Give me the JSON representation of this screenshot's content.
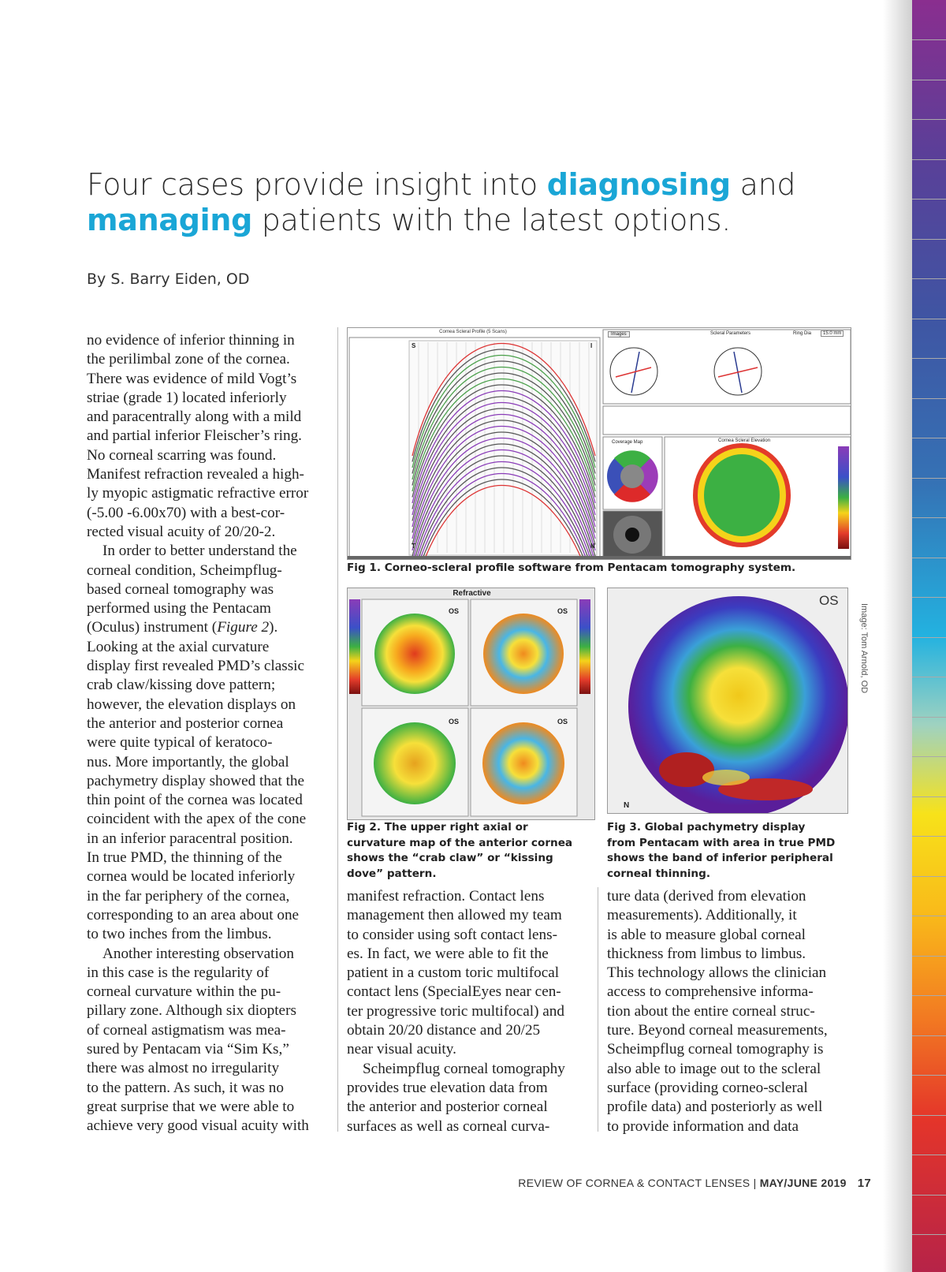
{
  "headline": [
    {
      "text": "Four cases provide insight into ",
      "hl": false
    },
    {
      "text": "diagnosing",
      "hl": true
    },
    {
      "text": " and ",
      "hl": false
    },
    {
      "text": "managing",
      "hl": true
    },
    {
      "text": " patients with the latest options.",
      "hl": false
    }
  ],
  "byline": "By S. Barry Eiden, OD",
  "columns": {
    "left": [
      "no evidence of inferior thinning in",
      "the perilimbal zone of the cornea.",
      "There was evidence of mild Vogt’s",
      "striae (grade 1) located inferiorly",
      "and paracentrally along with a mild",
      "and partial inferior Fleischer’s ring.",
      "No corneal scarring was found.",
      "Manifest refraction revealed a high-",
      "ly myopic astigmatic refractive error",
      "(-5.00 -6.00x70) with a best-cor-",
      "rected visual acuity of 20/20-2.",
      "~In order to better understand the",
      "corneal condition, Scheimpflug-",
      "based corneal tomography was",
      "performed using the Pentacam",
      "(Oculus) instrument (Figure 2).",
      "Looking at the axial curvature",
      "display first revealed PMD’s classic",
      "crab claw/kissing dove pattern;",
      "however, the elevation displays on",
      "the anterior and posterior cornea",
      "were quite typical of keratoco-",
      "nus. More importantly, the global",
      "pachymetry display showed that the",
      "thin point of the cornea was located",
      "coincident with the apex of the cone",
      "in an inferior paracentral position.",
      "In true PMD, the thinning of the",
      "cornea would be located inferiorly",
      "in the far periphery of the cornea,",
      "corresponding to an area about one",
      "to two inches from the limbus.",
      "~Another interesting observation",
      "in this case is the regularity of",
      "corneal curvature within the pu-",
      "pillary zone. Although six diopters",
      "of corneal astigmatism was mea-",
      "sured by Pentacam via “Sim Ks,”",
      "there was almost no irregularity",
      "to the pattern. As such, it was no",
      "great surprise that we were able to",
      "achieve very good visual acuity with"
    ],
    "middle": [
      "manifest refraction. Contact lens",
      "management then allowed my team",
      "to consider using soft contact lens-",
      "es. In fact, we were able to fit the",
      "patient in a custom toric multifocal",
      "contact lens (SpecialEyes near cen-",
      "ter progressive toric multifocal) and",
      "obtain 20/20 distance and 20/25",
      "near visual acuity.",
      "~Scheimpflug corneal tomography",
      "provides true elevation data from",
      "the anterior and posterior corneal",
      "surfaces as well as corneal curva-"
    ],
    "right": [
      "ture data (derived from elevation",
      "measurements). Additionally, it",
      "is able to measure global corneal",
      "thickness from limbus to limbus.",
      "This technology allows the clinician",
      "access to comprehensive informa-",
      "tion about the entire corneal struc-",
      "ture. Beyond corneal measurements,",
      "Scheimpflug corneal tomography is",
      "also able to image out to the scleral",
      "surface (providing corneo-scleral",
      "profile data) and posteriorly as well",
      "to provide information and data"
    ]
  },
  "figures": {
    "fig1": {
      "caption": "Fig 1. Corneo-scleral profile software from Pentacam tomography system.",
      "panel_title": "Cornea Scleral Profile (5 Scans)",
      "images_button": "Images",
      "params_title": "Scleral Parameters",
      "ring_dia": "Ring Dia",
      "ring_value": "15.0 mm",
      "coverage": "Coverage Map",
      "elevation": "Cornea Scleral Elevation",
      "s": "S",
      "i": "I",
      "t": "T",
      "n": "N"
    },
    "fig2": {
      "caption": [
        "Fig 2. The upper right axial or",
        "curvature map of the anterior cornea",
        "shows the “crab claw” or “kissing",
        "dove” pattern."
      ],
      "header": "Refractive",
      "os": "OS"
    },
    "fig3": {
      "caption": [
        "Fig 3. Global pachymetry display",
        "from Pentacam with area in true PMD",
        "shows the band of inferior peripheral",
        "corneal thinning."
      ],
      "os": "OS",
      "n": "N"
    }
  },
  "credit": "Image: Tom Arnold, OD",
  "footer": {
    "publication": "REVIEW OF CORNEA & CONTACT LENSES | ",
    "issue": "MAY/JUNE 2019",
    "page": "17"
  }
}
